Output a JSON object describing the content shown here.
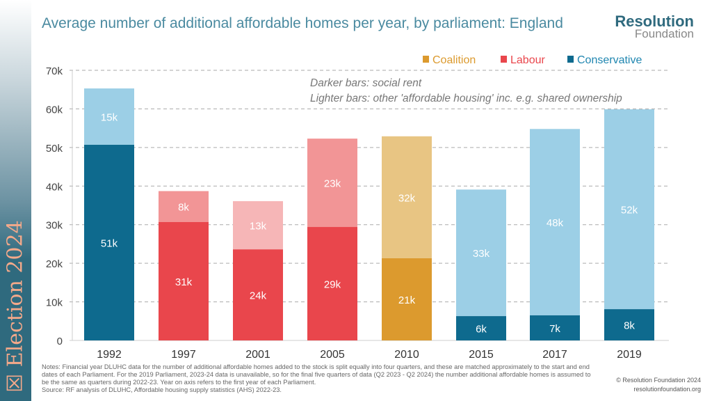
{
  "sidebar": {
    "label": "☒ Election 2024"
  },
  "title": "Average number of additional affordable homes per year, by parliament: England",
  "logo": {
    "line1": "Resolution",
    "line2": "Foundation"
  },
  "notes": [
    "Notes: Financial year DLUHC data for the number of additional affordable homes added to the stock is split equally into four quarters, and these are matched approximately to the start and end dates of each Parliament. For the 2019 Parliament, 2023-24 data is unavailable, so for the final five quarters of data (Q2 2023 - Q2 2024) the number additional affordable homes is assumed to be the same as quarters during 2022-23. Year on axis refers to the first year of each Parliament.",
    "Source: RF analysis of DLUHC, Affordable housing supply statistics (AHS) 2022-23."
  ],
  "copyright": [
    "© Resolution Foundation 2024",
    "resolutionfoundation.org"
  ],
  "chart_data": {
    "type": "bar",
    "stacked": true,
    "categories": [
      "1992",
      "1997",
      "2001",
      "2005",
      "2010",
      "2015",
      "2017",
      "2019"
    ],
    "party": [
      "Conservative",
      "Labour",
      "Labour",
      "Labour",
      "Coalition",
      "Conservative",
      "Conservative",
      "Conservative"
    ],
    "series": [
      {
        "name": "Darker bars: social rent",
        "values": [
          51,
          31,
          24,
          29,
          21,
          6,
          7,
          8
        ],
        "labels": [
          "51k",
          "31k",
          "24k",
          "29k",
          "21k",
          "6k",
          "7k",
          "8k"
        ]
      },
      {
        "name": "Lighter bars: other 'affordable housing' inc. e.g. shared ownership",
        "values": [
          15,
          8,
          13,
          23,
          32,
          33,
          48,
          52
        ],
        "labels": [
          "15k",
          "8k",
          "13k",
          "23k",
          "32k",
          "33k",
          "48k",
          "52k"
        ]
      }
    ],
    "actual_totals": [
      65.3,
      38.7,
      36.1,
      52.3,
      52.9,
      39.1,
      54.8,
      59.9
    ],
    "actual_dark": [
      50.7,
      30.7,
      23.6,
      29.4,
      21.3,
      6.3,
      6.5,
      8.1
    ],
    "ylim": [
      0,
      70
    ],
    "yticks": [
      "0",
      "10k",
      "20k",
      "30k",
      "40k",
      "50k",
      "60k",
      "70k"
    ],
    "grid": true,
    "legend": {
      "position": "top-right",
      "items": [
        {
          "name": "Coalition",
          "color": "#dc9a2e"
        },
        {
          "name": "Labour",
          "color": "#e9464c"
        },
        {
          "name": "Conservative",
          "color": "#0e6a8e"
        }
      ]
    },
    "annotation": [
      "Darker bars: social rent",
      "Lighter bars: other 'affordable housing' inc. e.g. shared ownership"
    ],
    "colors": {
      "Conservative": [
        "#0e6a8e",
        "#9ccfe6"
      ],
      "Labour": [
        "#e9464c",
        "#f29596"
      ],
      "Coalition": [
        "#dc9a2e",
        "#e8c583"
      ]
    }
  }
}
